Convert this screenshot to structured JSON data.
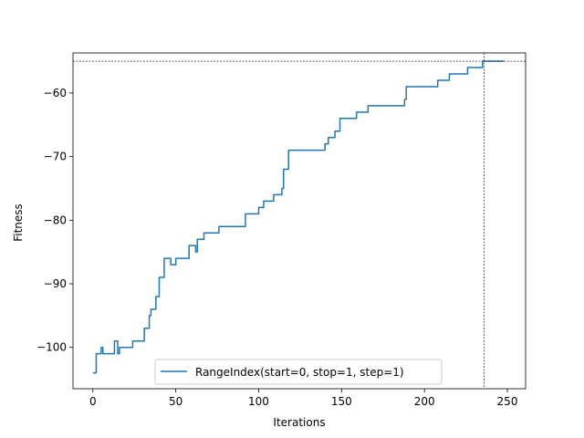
{
  "chart_data": {
    "type": "line",
    "xlabel": "Iterations",
    "ylabel": "Fitness",
    "xlim": [
      -12,
      261
    ],
    "ylim": [
      -106.5,
      -53.7
    ],
    "xticks": [
      0,
      50,
      100,
      150,
      200,
      250
    ],
    "yticks": [
      -100,
      -90,
      -80,
      -70,
      -60
    ],
    "xtick_labels": [
      "0",
      "50",
      "100",
      "150",
      "200",
      "250"
    ],
    "ytick_labels": [
      "−100",
      "−90",
      "−80",
      "−70",
      "−60"
    ],
    "grid": false,
    "legend_placement": "lower center",
    "reference_lines": {
      "horizontal_y": -55,
      "vertical_x": 236
    },
    "series": [
      {
        "name": "RangeIndex(start=0, stop=1, step=1)",
        "color": "#1f77b4",
        "steps": [
          [
            0,
            -104
          ],
          [
            2,
            -101
          ],
          [
            5,
            -100
          ],
          [
            6,
            -101
          ],
          [
            13,
            -99
          ],
          [
            15,
            -101
          ],
          [
            16,
            -100
          ],
          [
            24,
            -99
          ],
          [
            31,
            -97
          ],
          [
            34,
            -95
          ],
          [
            35,
            -94
          ],
          [
            38,
            -92
          ],
          [
            40,
            -89
          ],
          [
            43,
            -86
          ],
          [
            47,
            -87
          ],
          [
            50,
            -86
          ],
          [
            58,
            -84
          ],
          [
            62,
            -85
          ],
          [
            63,
            -83
          ],
          [
            67,
            -82
          ],
          [
            76,
            -81
          ],
          [
            92,
            -79
          ],
          [
            100,
            -78
          ],
          [
            103,
            -77
          ],
          [
            109,
            -76
          ],
          [
            114,
            -75
          ],
          [
            115,
            -72
          ],
          [
            118,
            -69
          ],
          [
            140,
            -68
          ],
          [
            142,
            -67
          ],
          [
            146,
            -66
          ],
          [
            149,
            -64
          ],
          [
            159,
            -63
          ],
          [
            166,
            -62
          ],
          [
            188,
            -61
          ],
          [
            189,
            -59
          ],
          [
            208,
            -58
          ],
          [
            215,
            -57
          ],
          [
            226,
            -56
          ],
          [
            235,
            -55
          ],
          [
            248,
            -55
          ]
        ]
      }
    ]
  }
}
